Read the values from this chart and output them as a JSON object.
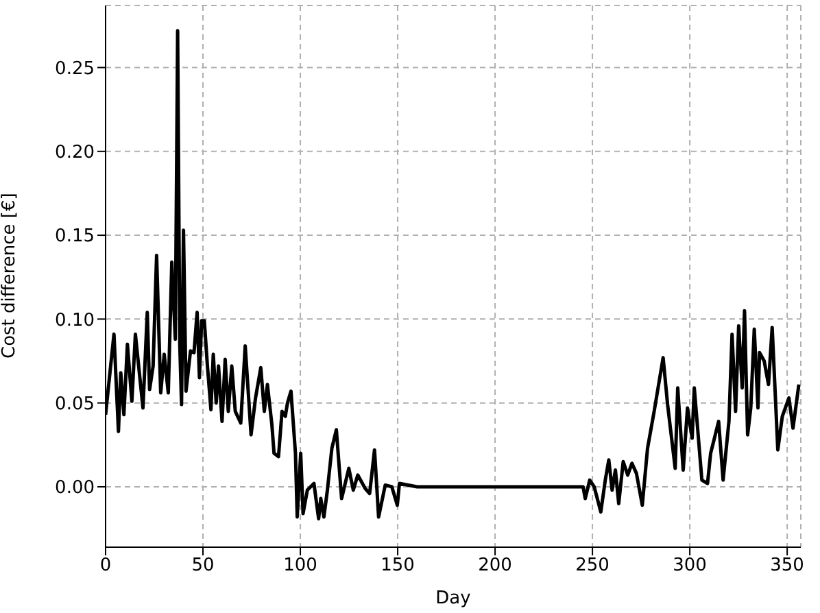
{
  "chart_data": {
    "type": "line",
    "xlabel": "Day",
    "ylabel": "Cost difference [€]",
    "x": [
      0,
      4.3,
      6.6,
      7.8,
      9.4,
      11.2,
      13.5,
      15.3,
      19.2,
      21.4,
      22.6,
      24.4,
      26.2,
      28.3,
      30.1,
      32.2,
      34,
      35.8,
      37,
      38.1,
      39,
      40,
      41.3,
      43.6,
      45.4,
      47,
      48.2,
      49.3,
      50.7,
      52.3,
      54.1,
      55.3,
      56.8,
      58,
      59.8,
      61.4,
      63,
      64.8,
      66.6,
      69.4,
      71.7,
      74.7,
      77,
      79.7,
      81.5,
      83.1,
      85.4,
      86.5,
      88.8,
      90.6,
      92.3,
      93.4,
      95.2,
      97.5,
      98.4,
      100.2,
      101.4,
      103.6,
      107,
      109.4,
      110.5,
      112.1,
      113.9,
      116.2,
      118.5,
      121.2,
      124.9,
      127.2,
      129.5,
      133.3,
      135.6,
      138.1,
      140.2,
      143.6,
      147,
      149.8,
      150.9,
      160,
      180,
      200,
      220,
      240,
      245.2,
      246.3,
      248.6,
      250.9,
      254.3,
      256.6,
      258.4,
      260.1,
      261.8,
      263.5,
      265.8,
      268.1,
      270.3,
      272.6,
      275.6,
      278.3,
      281.7,
      286.3,
      288.6,
      292.5,
      293.8,
      296.6,
      298.8,
      301.2,
      302.3,
      306.2,
      309.1,
      310.7,
      314.8,
      317.1,
      320.1,
      321.7,
      323.5,
      325.1,
      326.9,
      328.1,
      329.7,
      331.3,
      333.1,
      335,
      335.8,
      338.2,
      340.4,
      342.3,
      345.2,
      347.5,
      350.9,
      353,
      356
    ],
    "series": [
      {
        "color": "#000000",
        "values": [
          0.043,
          0.091,
          0.033,
          0.068,
          0.043,
          0.085,
          0.051,
          0.091,
          0.047,
          0.104,
          0.058,
          0.072,
          0.138,
          0.056,
          0.079,
          0.056,
          0.134,
          0.088,
          0.272,
          0.085,
          0.049,
          0.153,
          0.057,
          0.081,
          0.08,
          0.104,
          0.065,
          0.099,
          0.099,
          0.072,
          0.046,
          0.079,
          0.05,
          0.072,
          0.039,
          0.076,
          0.045,
          0.072,
          0.045,
          0.038,
          0.084,
          0.031,
          0.053,
          0.071,
          0.045,
          0.061,
          0.037,
          0.02,
          0.018,
          0.045,
          0.042,
          0.05,
          0.057,
          0.02,
          -0.018,
          0.02,
          -0.016,
          -0.002,
          0.002,
          -0.019,
          -0.007,
          -0.018,
          -0.002,
          0.023,
          0.034,
          -0.007,
          0.011,
          -0.002,
          0.007,
          -0.001,
          -0.004,
          0.022,
          -0.018,
          0.001,
          0,
          -0.011,
          0.002,
          0,
          0,
          0,
          0,
          0,
          0,
          -0.007,
          0.004,
          0,
          -0.015,
          0.004,
          0.016,
          -0.002,
          0.01,
          -0.01,
          0.015,
          0.007,
          0.014,
          0.008,
          -0.011,
          0.023,
          0.045,
          0.077,
          0.049,
          0.011,
          0.059,
          0.01,
          0.047,
          0.029,
          0.059,
          0.004,
          0.002,
          0.02,
          0.039,
          0.004,
          0.039,
          0.091,
          0.045,
          0.096,
          0.059,
          0.105,
          0.031,
          0.047,
          0.094,
          0.047,
          0.08,
          0.075,
          0.061,
          0.095,
          0.022,
          0.042,
          0.053,
          0.035,
          0.061
        ]
      }
    ],
    "xlim": [
      0,
      357
    ],
    "xticks": [
      0,
      50,
      100,
      150,
      200,
      250,
      300,
      350
    ],
    "ylim": [
      -0.036,
      0.287
    ],
    "yticks": [
      {
        "value": 0,
        "label": "0.00"
      },
      {
        "value": 0.05,
        "label": "0.05"
      },
      {
        "value": 0.1,
        "label": "0.10"
      },
      {
        "value": 0.15,
        "label": "0.15"
      },
      {
        "value": 0.2,
        "label": "0.20"
      },
      {
        "value": 0.25,
        "label": "0.25"
      }
    ],
    "grid": true,
    "legend": false,
    "marker": "none",
    "line_style": "solid"
  }
}
